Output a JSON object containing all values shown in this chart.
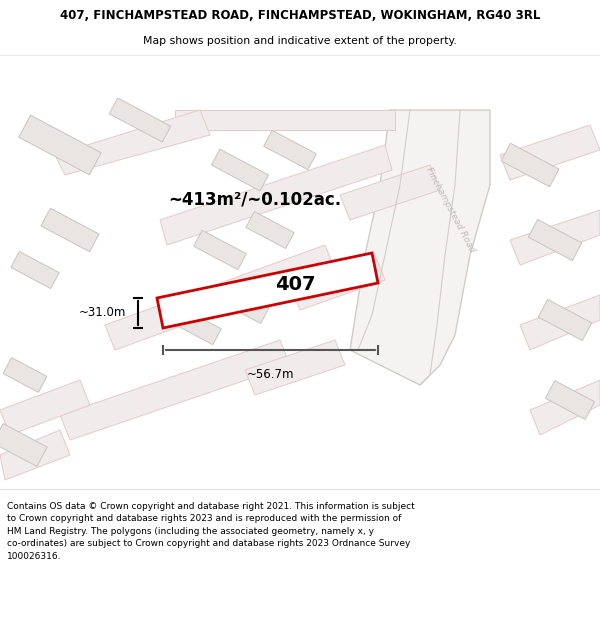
{
  "title_line1": "407, FINCHAMPSTEAD ROAD, FINCHAMPSTEAD, WOKINGHAM, RG40 3RL",
  "title_line2": "Map shows position and indicative extent of the property.",
  "area_label": "~413m²/~0.102ac.",
  "width_label": "~56.7m",
  "height_label": "~31.0m",
  "plot_number": "407",
  "footer_text": "Contains OS data © Crown copyright and database right 2021. This information is subject to Crown copyright and database rights 2023 and is reproduced with the permission of HM Land Registry. The polygons (including the associated geometry, namely x, y co-ordinates) are subject to Crown copyright and database rights 2023 Ordnance Survey 100026316.",
  "map_bg": "#ffffff",
  "building_fill": "#e8e5e3",
  "building_edge": "#c8c4c0",
  "road_fill": "#f0ecec",
  "road_edge": "#e8c8c8",
  "highlight_red": "#cc0000",
  "highlight_fill": "#ffffff",
  "text_dark": "#000000",
  "road_label_color": "#c0b8b8",
  "header_bg": "#ffffff",
  "footer_bg": "#ffffff",
  "divider_color": "#e0e0e0",
  "road_gray_fill": "#f5f3f2",
  "road_gray_edge": "#d0ccc8"
}
